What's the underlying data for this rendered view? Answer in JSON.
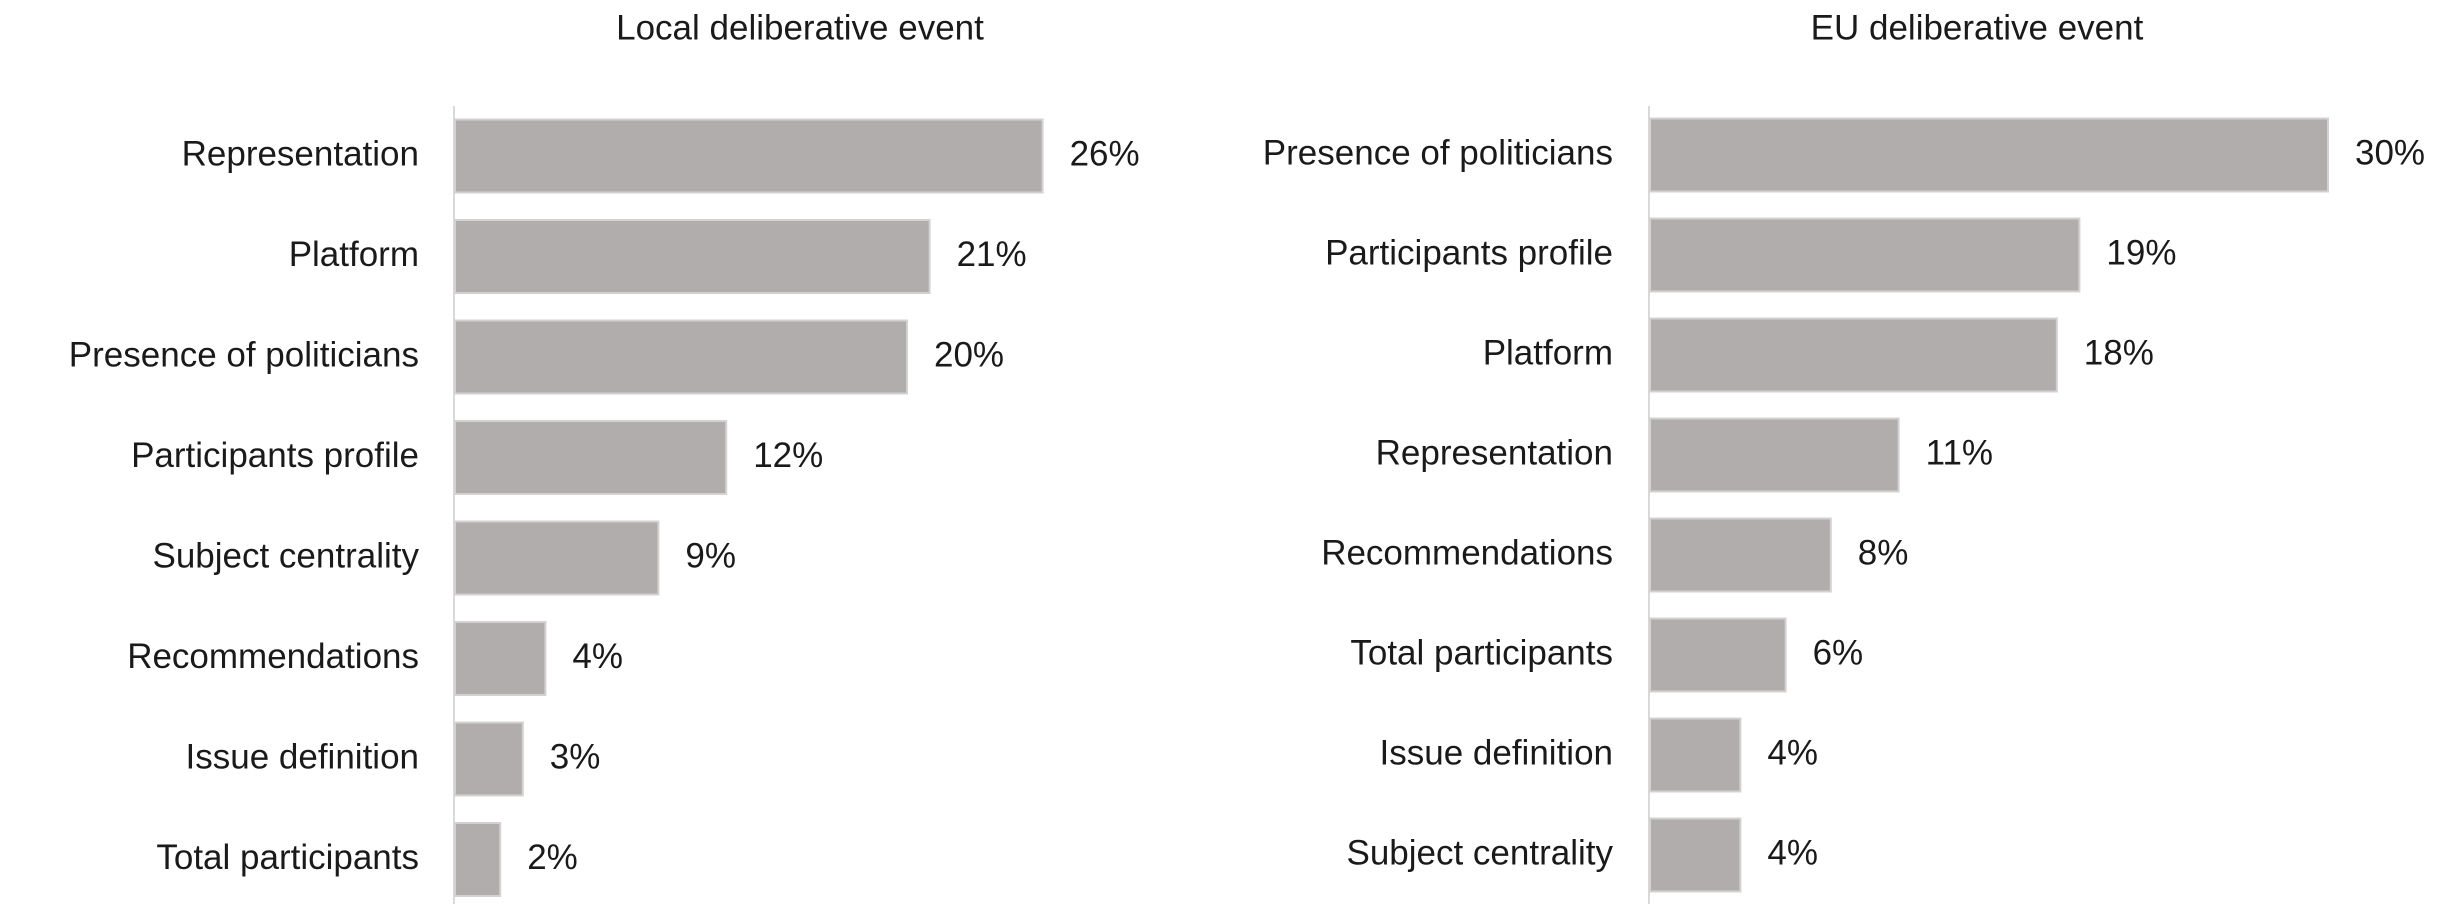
{
  "chart_data": [
    {
      "type": "bar",
      "orientation": "horizontal",
      "title": "Local deliberative event",
      "color": "#b0adac",
      "categories": [
        "Representation",
        "Platform",
        "Presence of politicians",
        "Participants profile",
        "Subject centrality",
        "Recommendations",
        "Issue definition",
        "Total participants"
      ],
      "values": [
        26,
        21,
        20,
        12,
        9,
        4,
        3,
        2
      ],
      "value_labels": [
        "26%",
        "21%",
        "20%",
        "12%",
        "9%",
        "4%",
        "3%",
        "2%"
      ]
    },
    {
      "type": "bar",
      "orientation": "horizontal",
      "title": "EU deliberative event",
      "color": "#b0adac",
      "categories": [
        "Presence of politicians",
        "Participants profile",
        "Platform",
        "Representation",
        "Recommendations",
        "Total participants",
        "Issue definition",
        "Subject centrality"
      ],
      "values": [
        30,
        19,
        18,
        11,
        8,
        6,
        4,
        4
      ],
      "value_labels": [
        "30%",
        "19%",
        "18%",
        "11%",
        "8%",
        "6%",
        "4%",
        "4%"
      ]
    }
  ]
}
